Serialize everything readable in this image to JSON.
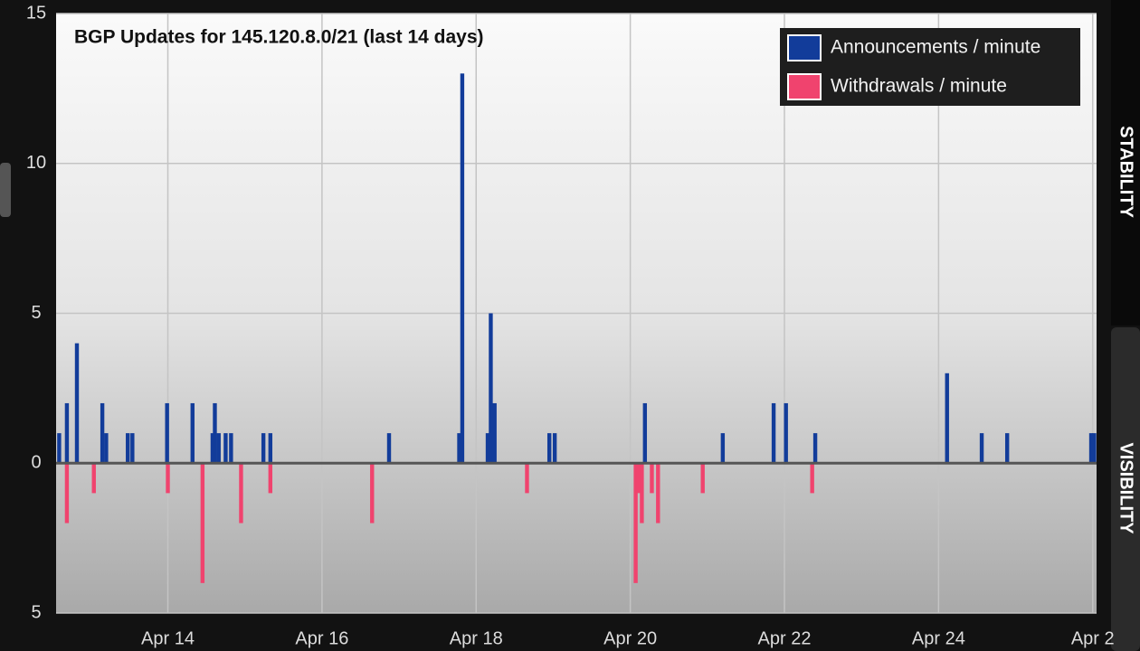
{
  "chart_data": {
    "type": "bar",
    "title": "BGP Updates for 145.120.8.0/21 (last 14 days)",
    "xlim": [
      12.55,
      26.05
    ],
    "xticks": [
      {
        "value": 14,
        "label": "Apr 14"
      },
      {
        "value": 16,
        "label": "Apr 16"
      },
      {
        "value": 18,
        "label": "Apr 18"
      },
      {
        "value": 20,
        "label": "Apr 20"
      },
      {
        "value": 22,
        "label": "Apr 22"
      },
      {
        "value": 24,
        "label": "Apr 24"
      },
      {
        "value": 26,
        "label": "Apr 2"
      }
    ],
    "ylim": [
      -5,
      15
    ],
    "yticks": [
      15,
      10,
      5,
      0,
      {
        "value": -5,
        "label": "5"
      }
    ],
    "grid": true,
    "legend": "top-right",
    "series": [
      {
        "name": "Announcements / minute",
        "color": "#123c9a",
        "x": [
          12.59,
          12.69,
          12.82,
          13.15,
          13.2,
          13.48,
          13.54,
          13.99,
          14.32,
          14.58,
          14.61,
          14.66,
          14.75,
          14.82,
          15.24,
          15.33,
          16.87,
          17.78,
          17.82,
          18.15,
          18.19,
          18.24,
          18.95,
          19.02,
          20.19,
          21.2,
          21.86,
          22.02,
          22.4,
          24.11,
          24.56,
          24.89,
          25.98,
          26.02
        ],
        "values": [
          1,
          2,
          4,
          2,
          1,
          1,
          1,
          2,
          2,
          1,
          2,
          1,
          1,
          1,
          1,
          1,
          1,
          1,
          13,
          1,
          5,
          2,
          1,
          1,
          2,
          1,
          2,
          2,
          1,
          3,
          1,
          1,
          1,
          1
        ]
      },
      {
        "name": "Withdrawals / minute",
        "color": "#f0436e",
        "x": [
          12.69,
          13.04,
          14.0,
          14.45,
          14.95,
          15.33,
          16.65,
          18.66,
          20.07,
          20.11,
          20.15,
          20.28,
          20.36,
          20.94,
          22.36
        ],
        "values": [
          -2,
          -1,
          -1,
          -4,
          -2,
          -1,
          -2,
          -1,
          -4,
          -1,
          -2,
          -1,
          -2,
          -1,
          -1
        ]
      }
    ]
  },
  "ui": {
    "tabs": [
      "STABILITY",
      "VISIBILITY"
    ]
  }
}
